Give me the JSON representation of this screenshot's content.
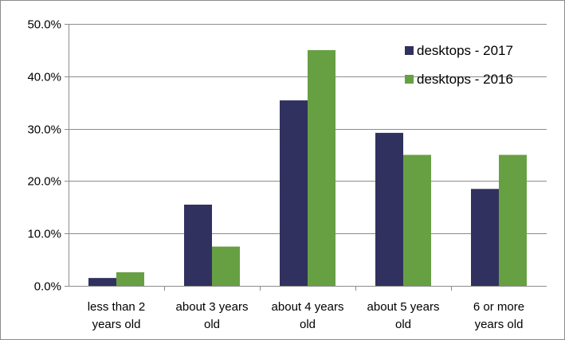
{
  "chart_data": {
    "type": "bar",
    "categories": [
      [
        "less than 2",
        "years old"
      ],
      [
        "about 3 years",
        "old"
      ],
      [
        "about 4 years",
        "old"
      ],
      [
        "about 5 years",
        "old"
      ],
      [
        "6 or more",
        "years old"
      ]
    ],
    "series": [
      {
        "name": "desktops - 2017",
        "color": "#31315f",
        "values": [
          1.5,
          15.5,
          35.4,
          29.2,
          18.5
        ]
      },
      {
        "name": "desktops - 2016",
        "color": "#67a043",
        "values": [
          2.6,
          7.5,
          45.0,
          25.0,
          25.0
        ]
      }
    ],
    "y_ticks": [
      "0.0%",
      "10.0%",
      "20.0%",
      "30.0%",
      "40.0%",
      "50.0%"
    ],
    "ylim": [
      0,
      50
    ],
    "grid": true,
    "legend_position": "top-right",
    "title": "",
    "xlabel": "",
    "ylabel": ""
  }
}
